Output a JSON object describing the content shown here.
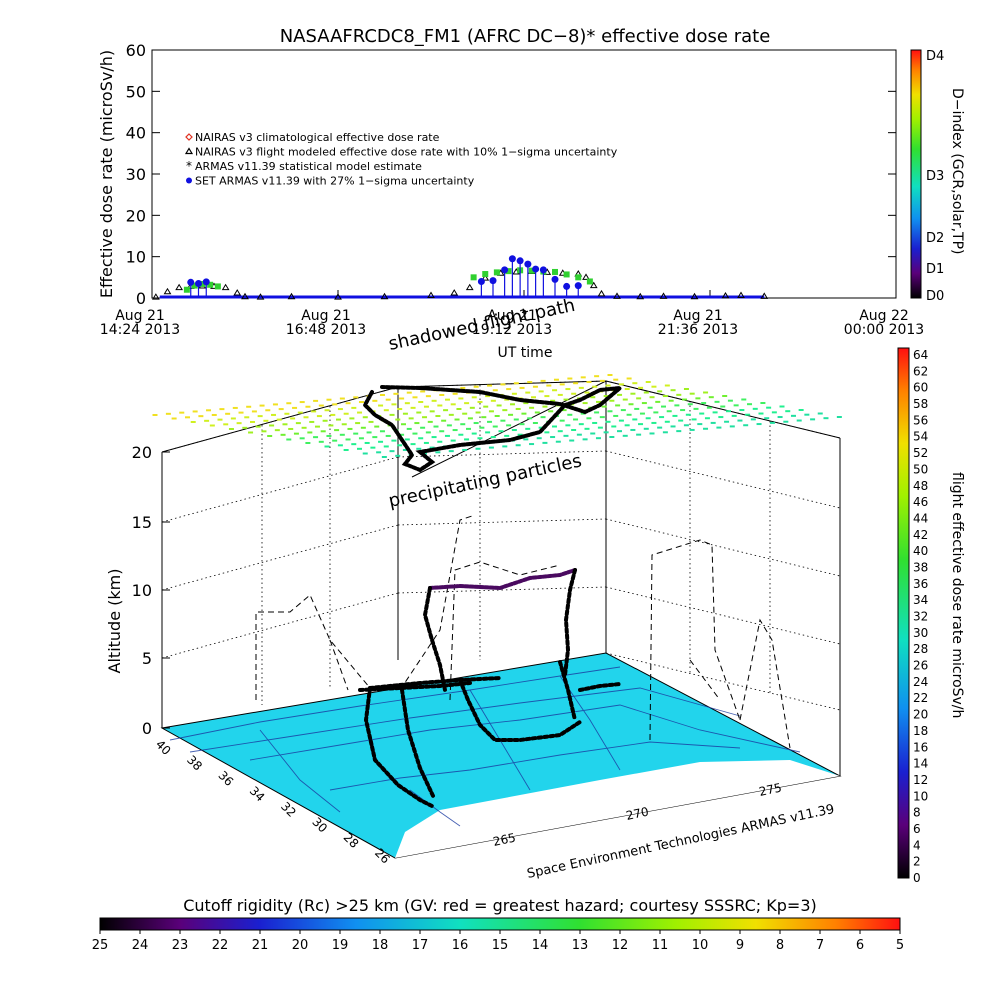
{
  "top_title": "NASAAFRCDC8_FM1 (AFRC DC−8)* effective dose rate",
  "chart_data": [
    {
      "type": "scatter",
      "title": "NASAAFRCDC8_FM1 (AFRC DC−8)* effective dose rate",
      "ylabel": "Effective dose rate (microSv/h)",
      "xlabel": "UT time",
      "ylim": [
        0,
        60
      ],
      "y_ticks": [
        0,
        10,
        20,
        30,
        40,
        50,
        60
      ],
      "x_ticks": [
        {
          "line1": "Aug 21",
          "line2": "14:24 2013"
        },
        {
          "line1": "Aug 21",
          "line2": "16:48 2013"
        },
        {
          "line1": "Aug 21",
          "line2": "19:12 2013"
        },
        {
          "line1": "Aug 21",
          "line2": "21:36 2013"
        },
        {
          "line1": "Aug 22",
          "line2": "00:00 2013"
        }
      ],
      "x_range_hours": [
        14.4,
        24.0
      ],
      "legend": [
        {
          "symbol": "diamond",
          "color": "#e03020",
          "label": "NAIRAS v3 climatological effective dose rate"
        },
        {
          "symbol": "triangle",
          "color": "#000000",
          "label": "NAIRAS v3 flight modeled effective dose rate with 10% 1−sigma uncertainty"
        },
        {
          "symbol": "asterisk",
          "color": "#30d030",
          "label": "ARMAS v11.39 statistical model estimate"
        },
        {
          "symbol": "dot",
          "color": "#1010e0",
          "label": "SET ARMAS v11.39 with 27% 1−sigma uncertainty"
        }
      ],
      "series": [
        {
          "name": "NAIRAS v3 flight modeled effective dose rate with 10% 1−sigma uncertainty",
          "x": [
            14.45,
            14.6,
            14.75,
            14.9,
            15.05,
            15.2,
            15.35,
            15.5,
            15.6,
            15.8,
            16.2,
            16.8,
            17.4,
            18.0,
            18.3,
            18.5,
            18.7,
            18.9,
            19.1,
            19.3,
            19.5,
            19.7,
            19.9,
            20.0,
            20.1,
            20.2,
            20.4,
            20.7,
            21.0,
            21.4,
            21.8,
            22.0,
            22.3
          ],
          "y": [
            0.2,
            1.5,
            2.5,
            2.8,
            2.9,
            2.8,
            2.5,
            1.2,
            0.3,
            0.2,
            0.3,
            0.2,
            0.3,
            0.6,
            1.2,
            2.5,
            4.8,
            6.0,
            6.3,
            6.4,
            6.2,
            6.0,
            5.8,
            5.0,
            3.0,
            1.0,
            0.4,
            0.3,
            0.4,
            0.3,
            0.5,
            0.6,
            0.4
          ]
        },
        {
          "name": "ARMAS v11.39 statistical model estimate",
          "x": [
            14.85,
            14.95,
            15.05,
            15.15,
            15.25,
            18.55,
            18.7,
            18.85,
            19.0,
            19.15,
            19.3,
            19.45,
            19.6,
            19.75,
            19.9,
            20.05
          ],
          "y": [
            2.0,
            3.0,
            3.4,
            3.2,
            2.8,
            5.0,
            5.8,
            6.2,
            6.5,
            6.7,
            6.6,
            6.4,
            6.3,
            5.7,
            5.0,
            4.0
          ]
        },
        {
          "name": "SET ARMAS v11.39 with 27% 1−sigma uncertainty",
          "x": [
            14.9,
            15.0,
            15.1,
            18.65,
            18.8,
            18.95,
            19.05,
            19.15,
            19.25,
            19.35,
            19.45,
            19.6,
            19.75,
            19.9
          ],
          "y": [
            3.8,
            3.5,
            3.9,
            4.0,
            4.2,
            6.8,
            9.5,
            9.0,
            8.2,
            7.0,
            6.8,
            4.5,
            2.8,
            3.0
          ]
        }
      ],
      "d_index_colorbar": {
        "label": "D−index (GCR,solar,TP)",
        "ticks": [
          "D4",
          "D3",
          "D2",
          "D1",
          "D0"
        ]
      }
    },
    {
      "type": "scatter",
      "ylabel": "Altitude (km)",
      "z_ticks": [
        0,
        5,
        10,
        15,
        20
      ],
      "lat_ticks": [
        40,
        38,
        36,
        34,
        32,
        30,
        28,
        26
      ],
      "lon_ticks": [
        265,
        270,
        275
      ],
      "annotations": [
        "shadowed flight path",
        "precipitating particles"
      ],
      "credit": "Space Environment Technologies ARMAS v11.39",
      "dose_colorbar": {
        "label": "flight effective dose rate microSv/h",
        "ticks": [
          0,
          2,
          4,
          6,
          8,
          10,
          12,
          14,
          16,
          18,
          20,
          22,
          24,
          26,
          28,
          30,
          32,
          34,
          36,
          38,
          40,
          42,
          44,
          46,
          48,
          50,
          52,
          54,
          56,
          58,
          60,
          62,
          64
        ]
      },
      "cutoff_colorbar": {
        "label": "Cutoff rigidity (Rc) >25 km (GV: red = greatest hazard; courtesy SSSRC; Kp=3)",
        "ticks": [
          25,
          24,
          23,
          22,
          21,
          20,
          19,
          18,
          17,
          16,
          15,
          14,
          13,
          12,
          11,
          10,
          9,
          8,
          7,
          6,
          5
        ]
      }
    }
  ]
}
